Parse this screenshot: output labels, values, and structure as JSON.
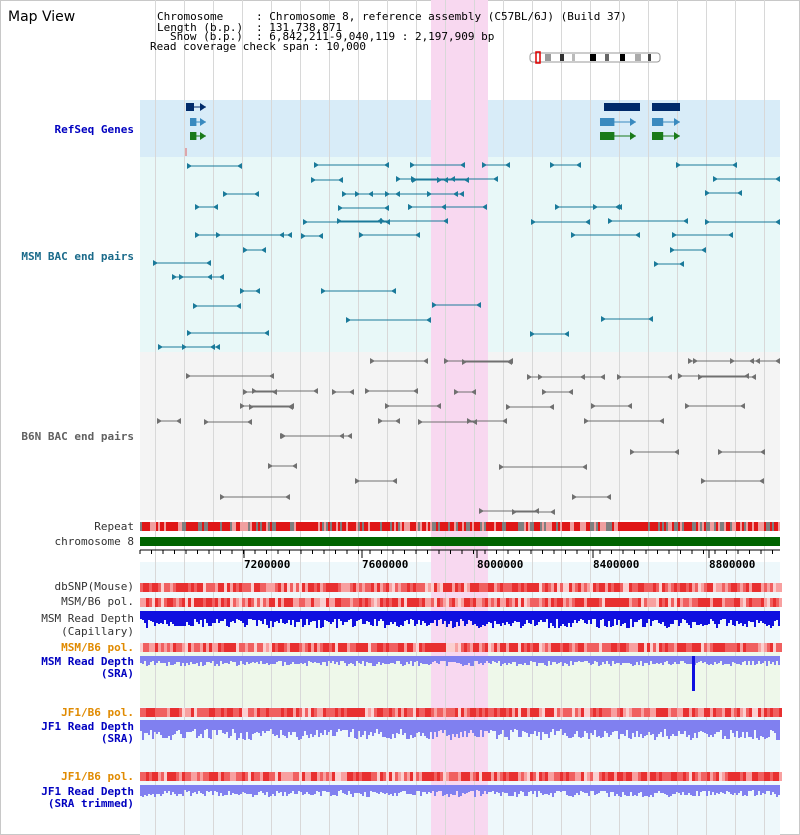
{
  "app": {
    "title": "Map View"
  },
  "header": {
    "chromosome_key": "Chromosome",
    "chromosome_value": ": Chromosome 8, reference assembly (C57BL/6J) (Build 37)",
    "length_key": "Length (b.p.)",
    "length_value": ": 131,738,871",
    "show_key": "Show (b.p.)",
    "show_value": ": 6,842,211-9,040,119 : 2,197,909 bp",
    "coverage_key": "Read coverage check span",
    "coverage_value": ": 10,000"
  },
  "tracks": {
    "refseq": "RefSeq Genes",
    "msm_bac": "MSM BAC end pairs",
    "b6n_bac": "B6N BAC end pairs",
    "repeat": "Repeat",
    "chromosome": "chromosome 8",
    "dbsnp": "dbSNP(Mouse)",
    "msm_b6_pol_1": "MSM/B6 pol.",
    "msm_depth_cap_1": "MSM Read Depth",
    "msm_depth_cap_2": "(Capillary)",
    "msm_b6_pol_2": "MSM/B6 pol.",
    "msm_depth_sra_1": "MSM Read Depth",
    "msm_depth_sra_2": "(SRA)",
    "jf1_b6_pol_1": "JF1/B6 pol.",
    "jf1_depth_sra_1": "JF1 Read Depth",
    "jf1_depth_sra_2": "(SRA)",
    "jf1_b6_pol_2": "JF1/B6 pol.",
    "jf1_depth_trim_1": "JF1 Read Depth",
    "jf1_depth_trim_2": "(SRA trimmed)"
  },
  "axis": {
    "ticks": [
      "7200000",
      "7600000",
      "8000000",
      "8400000",
      "8800000"
    ]
  },
  "colors": {
    "highlight": "#f8d8f0",
    "refseq_bg": "#d8ecf8",
    "msm_bg": "#e8f8f8",
    "b6n_bg": "#f4f4f4",
    "repeat_red": "#e01818",
    "chromosome_green": "#006400",
    "depth_blue": "#1010e0",
    "depth_light": "#8080f0",
    "teal": "#1a7a9a",
    "gray_pair": "#707070"
  }
}
